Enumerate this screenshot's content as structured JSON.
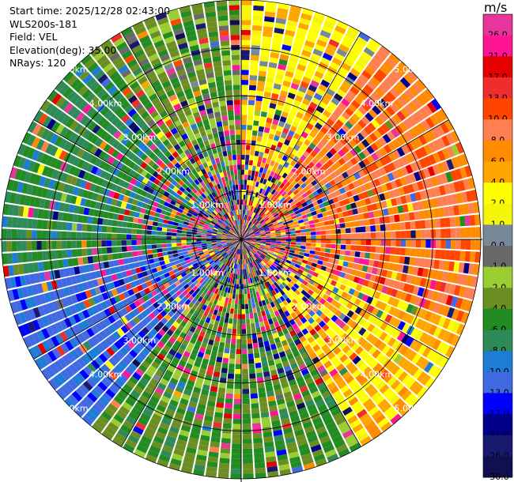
{
  "info": {
    "start_time": "Start time: 2025/12/28 02:43:00",
    "instrument": "WLS200s-181",
    "field": "Field: VEL",
    "elevation": "Elevation(deg): 35.00",
    "nrays": "NRays: 120"
  },
  "colorbar": {
    "unit": "m/s",
    "bins": [
      {
        "label": "26.0",
        "color": "#e8359b"
      },
      {
        "label": "21.0",
        "color": "#ff1493"
      },
      {
        "label": "17.0",
        "color": "#e60000"
      },
      {
        "label": "13.0",
        "color": "#f02d2d"
      },
      {
        "label": "10.0",
        "color": "#ff4500"
      },
      {
        "label": "8.0",
        "color": "#ff7f50"
      },
      {
        "label": "6.0",
        "color": "#ff8c00"
      },
      {
        "label": "4.0",
        "color": "#ffa500"
      },
      {
        "label": "2.0",
        "color": "#ffff00"
      },
      {
        "label": "1.0",
        "color": "#f5f50a"
      },
      {
        "label": "0.0",
        "color": "#778899"
      },
      {
        "label": "-1.0",
        "color": "#696969"
      },
      {
        "label": "-2.0",
        "color": "#9acd32"
      },
      {
        "label": "-4.0",
        "color": "#6b8e23"
      },
      {
        "label": "-6.0",
        "color": "#228b22"
      },
      {
        "label": "-8.0",
        "color": "#2e8b57"
      },
      {
        "label": "-10.0",
        "color": "#1e7bd6"
      },
      {
        "label": "-13.0",
        "color": "#4169e1"
      },
      {
        "label": "-17.0",
        "color": "#0000ff"
      },
      {
        "label": "-21.0",
        "color": "#00008b"
      },
      {
        "label": "-26.0",
        "color": "#191970"
      },
      {
        "label": "-30.0",
        "color": ""
      }
    ]
  },
  "chart_data": {
    "type": "heatmap",
    "projection": "polar",
    "field": "VEL",
    "n_rays": 120,
    "range_ticks_km": [
      1,
      2,
      3,
      4,
      5
    ],
    "range_labels": [
      "1.00km",
      "2.00km",
      "3.00km",
      "4.00km",
      "5.00km"
    ],
    "max_range_km": 5.0,
    "grid": true,
    "sector_summary": [
      {
        "azimuth_deg": [
          0,
          35
        ],
        "dominant_ms": 3
      },
      {
        "azimuth_deg": [
          35,
          110
        ],
        "dominant_ms": 9
      },
      {
        "azimuth_deg": [
          110,
          150
        ],
        "dominant_ms": 4
      },
      {
        "azimuth_deg": [
          150,
          220
        ],
        "dominant_ms": -4
      },
      {
        "azimuth_deg": [
          220,
          260
        ],
        "dominant_ms": -11
      },
      {
        "azimuth_deg": [
          260,
          320
        ],
        "dominant_ms": -6
      },
      {
        "azimuth_deg": [
          320,
          360
        ],
        "dominant_ms": -3
      }
    ],
    "noise_free_inner_radius_km": 0,
    "noise_outer_radius_km": 3.5
  }
}
